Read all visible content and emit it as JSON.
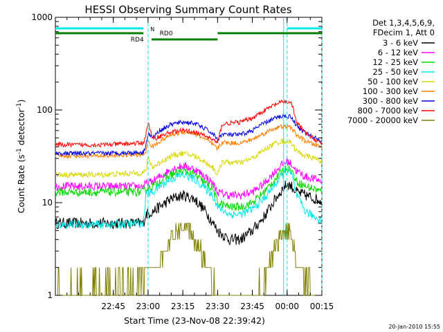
{
  "chart_data": {
    "type": "line",
    "title": "HESSI Observing Summary Count Rates",
    "xlabel": "Start Time (23-Nov-08 22:39:42)",
    "ylabel_main": "Count Rate (s",
    "ylabel_sup1": "-1",
    "ylabel_mid": " detector",
    "ylabel_sup2": "-1",
    "ylabel_end": ")",
    "y_scale": "log",
    "ylim": [
      1,
      1000
    ],
    "xlim_minutes": [
      -20,
      95
    ],
    "x_ticks": [
      {
        "m": 5,
        "label": "22:45"
      },
      {
        "m": 20,
        "label": "23:00"
      },
      {
        "m": 35,
        "label": "23:15"
      },
      {
        "m": 50,
        "label": "23:30"
      },
      {
        "m": 65,
        "label": "23:45"
      },
      {
        "m": 80,
        "label": "00:00"
      },
      {
        "m": 95,
        "label": "00:15"
      }
    ],
    "y_ticks": [
      {
        "v": 1,
        "label": "1"
      },
      {
        "v": 10,
        "label": "10"
      },
      {
        "v": 100,
        "label": "100"
      },
      {
        "v": 1000,
        "label": "1000"
      }
    ],
    "legend_header": [
      "Det 1,3,4,5,6,9,",
      "FDecim 1, Att 0"
    ],
    "series": [
      {
        "name": "3 - 6 keV",
        "color": "#000000",
        "points": [
          [
            18,
            6
          ],
          [
            19,
            7.5
          ],
          [
            22,
            8
          ],
          [
            25,
            9
          ],
          [
            30,
            11
          ],
          [
            35,
            12
          ],
          [
            40,
            11
          ],
          [
            45,
            8
          ],
          [
            48,
            6
          ],
          [
            50,
            5
          ],
          [
            55,
            4
          ],
          [
            60,
            4
          ],
          [
            65,
            5
          ],
          [
            70,
            7
          ],
          [
            75,
            11
          ],
          [
            78,
            14
          ],
          [
            80,
            16
          ],
          [
            82,
            15
          ],
          [
            84,
            13
          ],
          [
            88,
            12
          ],
          [
            92,
            11
          ],
          [
            95,
            10.5
          ]
        ]
      },
      {
        "name": "6 - 12 keV",
        "color": "#ff00ff",
        "points": [
          [
            -20,
            15
          ],
          [
            0,
            15
          ],
          [
            18,
            15
          ],
          [
            19,
            16
          ],
          [
            22,
            17
          ],
          [
            25,
            19
          ],
          [
            30,
            23
          ],
          [
            35,
            25
          ],
          [
            40,
            23
          ],
          [
            45,
            19
          ],
          [
            48,
            16
          ],
          [
            50,
            13
          ],
          [
            55,
            12
          ],
          [
            60,
            12
          ],
          [
            65,
            13
          ],
          [
            70,
            16
          ],
          [
            75,
            22
          ],
          [
            78,
            26
          ],
          [
            80,
            28
          ],
          [
            82,
            26
          ],
          [
            84,
            22
          ],
          [
            88,
            19
          ],
          [
            92,
            18
          ],
          [
            95,
            17
          ]
        ]
      },
      {
        "name": "12 - 25 keV",
        "color": "#00d800",
        "points": [
          [
            -20,
            13
          ],
          [
            0,
            13
          ],
          [
            18,
            13
          ],
          [
            19,
            14
          ],
          [
            22,
            15
          ],
          [
            25,
            17
          ],
          [
            30,
            20
          ],
          [
            35,
            22
          ],
          [
            40,
            20
          ],
          [
            45,
            16
          ],
          [
            48,
            14
          ],
          [
            50,
            10
          ],
          [
            55,
            9
          ],
          [
            60,
            9
          ],
          [
            65,
            10
          ],
          [
            70,
            13
          ],
          [
            75,
            18
          ],
          [
            78,
            22
          ],
          [
            80,
            24
          ],
          [
            82,
            22
          ],
          [
            84,
            17
          ],
          [
            88,
            15
          ],
          [
            92,
            14
          ],
          [
            95,
            13
          ]
        ]
      },
      {
        "name": "25 - 50 keV",
        "color": "#00e8e8",
        "points": [
          [
            -20,
            5.8
          ],
          [
            0,
            5.8
          ],
          [
            18,
            6
          ],
          [
            19,
            12
          ],
          [
            22,
            13
          ],
          [
            25,
            15
          ],
          [
            30,
            18
          ],
          [
            35,
            20
          ],
          [
            40,
            18
          ],
          [
            45,
            14
          ],
          [
            48,
            12
          ],
          [
            50,
            9
          ],
          [
            55,
            7.5
          ],
          [
            60,
            7.5
          ],
          [
            65,
            8.5
          ],
          [
            70,
            11
          ],
          [
            75,
            16
          ],
          [
            78,
            20
          ],
          [
            80,
            22
          ],
          [
            82,
            20
          ],
          [
            84,
            12
          ],
          [
            88,
            8
          ],
          [
            92,
            7
          ],
          [
            95,
            6.5
          ]
        ]
      },
      {
        "name": "50 - 100 keV",
        "color": "#d8d800",
        "points": [
          [
            -20,
            20
          ],
          [
            0,
            20
          ],
          [
            18,
            21
          ],
          [
            19,
            22
          ],
          [
            20,
            30
          ],
          [
            22,
            24
          ],
          [
            25,
            27
          ],
          [
            30,
            32
          ],
          [
            35,
            34
          ],
          [
            40,
            32
          ],
          [
            45,
            27
          ],
          [
            48,
            24
          ],
          [
            50,
            20
          ],
          [
            52,
            28
          ],
          [
            55,
            27
          ],
          [
            60,
            27
          ],
          [
            65,
            30
          ],
          [
            70,
            37
          ],
          [
            75,
            44
          ],
          [
            78,
            46
          ],
          [
            80,
            46
          ],
          [
            82,
            44
          ],
          [
            84,
            36
          ],
          [
            88,
            32
          ],
          [
            92,
            30
          ],
          [
            95,
            28
          ]
        ]
      },
      {
        "name": "100 - 300 keV",
        "color": "#ff7f00",
        "points": [
          [
            -20,
            32
          ],
          [
            0,
            32
          ],
          [
            18,
            33
          ],
          [
            19,
            36
          ],
          [
            20,
            46
          ],
          [
            22,
            40
          ],
          [
            25,
            46
          ],
          [
            30,
            54
          ],
          [
            35,
            58
          ],
          [
            40,
            56
          ],
          [
            45,
            48
          ],
          [
            48,
            42
          ],
          [
            50,
            38
          ],
          [
            52,
            45
          ],
          [
            55,
            44
          ],
          [
            60,
            44
          ],
          [
            65,
            48
          ],
          [
            70,
            56
          ],
          [
            75,
            64
          ],
          [
            78,
            66
          ],
          [
            80,
            66
          ],
          [
            82,
            64
          ],
          [
            84,
            54
          ],
          [
            88,
            46
          ],
          [
            92,
            42
          ],
          [
            95,
            40
          ]
        ]
      },
      {
        "name": "300 - 800 keV",
        "color": "#0000e0",
        "points": [
          [
            -20,
            34
          ],
          [
            0,
            34
          ],
          [
            18,
            35
          ],
          [
            19,
            42
          ],
          [
            20,
            56
          ],
          [
            22,
            50
          ],
          [
            25,
            60
          ],
          [
            30,
            70
          ],
          [
            35,
            74
          ],
          [
            40,
            72
          ],
          [
            45,
            62
          ],
          [
            48,
            55
          ],
          [
            50,
            48
          ],
          [
            52,
            55
          ],
          [
            55,
            54
          ],
          [
            60,
            54
          ],
          [
            65,
            60
          ],
          [
            70,
            72
          ],
          [
            75,
            82
          ],
          [
            78,
            86
          ],
          [
            80,
            86
          ],
          [
            82,
            84
          ],
          [
            84,
            68
          ],
          [
            88,
            56
          ],
          [
            92,
            50
          ],
          [
            95,
            46
          ]
        ]
      },
      {
        "name": "800 - 7000 keV",
        "color": "#ff0000",
        "points": [
          [
            -20,
            42
          ],
          [
            0,
            42
          ],
          [
            18,
            44
          ],
          [
            19,
            54
          ],
          [
            20,
            74
          ],
          [
            22,
            48
          ],
          [
            25,
            52
          ],
          [
            30,
            58
          ],
          [
            35,
            60
          ],
          [
            40,
            58
          ],
          [
            45,
            52
          ],
          [
            48,
            48
          ],
          [
            50,
            44
          ],
          [
            52,
            70
          ],
          [
            55,
            72
          ],
          [
            60,
            74
          ],
          [
            65,
            82
          ],
          [
            70,
            98
          ],
          [
            75,
            115
          ],
          [
            78,
            122
          ],
          [
            80,
            122
          ],
          [
            82,
            118
          ],
          [
            84,
            74
          ],
          [
            88,
            56
          ],
          [
            92,
            48
          ],
          [
            95,
            44
          ]
        ]
      },
      {
        "name": "7000 - 20000 keV",
        "color": "#808000",
        "points": [
          [
            -20,
            1.3
          ],
          [
            0,
            1.3
          ],
          [
            18,
            1.5
          ],
          [
            20,
            1.8
          ],
          [
            24,
            2.2
          ],
          [
            27,
            3
          ],
          [
            30,
            4
          ],
          [
            33,
            5.2
          ],
          [
            35,
            5.5
          ],
          [
            38,
            5.2
          ],
          [
            40,
            4
          ],
          [
            43,
            3
          ],
          [
            46,
            2
          ],
          [
            50,
            1.3
          ],
          [
            55,
            1
          ],
          [
            60,
            1
          ],
          [
            65,
            1.1
          ],
          [
            70,
            1.5
          ],
          [
            73,
            2.5
          ],
          [
            76,
            4
          ],
          [
            78,
            5
          ],
          [
            80,
            5
          ],
          [
            82,
            4.5
          ],
          [
            84,
            2.5
          ],
          [
            88,
            1.5
          ],
          [
            92,
            1.2
          ],
          [
            95,
            1.1
          ]
        ]
      }
    ],
    "annotations": {
      "flags": [
        {
          "label": "N",
          "color": "#00e8e8"
        },
        {
          "label": "RD0",
          "color": "#008000"
        },
        {
          "label": "RD4",
          "color": "#008000"
        }
      ],
      "timestamp": "20-Jan-2010 15:55"
    }
  }
}
